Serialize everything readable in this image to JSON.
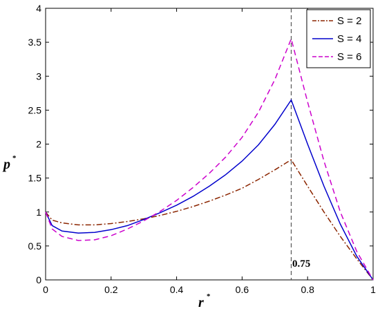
{
  "chart_data": {
    "type": "line",
    "xlabel": "r",
    "xlabel_sup": "*",
    "ylabel": "p",
    "ylabel_sup": "*",
    "xlim": [
      0,
      1
    ],
    "ylim": [
      0,
      4
    ],
    "xticks": [
      0,
      0.2,
      0.4,
      0.6,
      0.8,
      1
    ],
    "xtick_labels": [
      "0",
      "0.2",
      "0.4",
      "0.6",
      "0.8",
      "1"
    ],
    "yticks": [
      0,
      0.5,
      1,
      1.5,
      2,
      2.5,
      3,
      3.5,
      4
    ],
    "ytick_labels": [
      "0",
      "0.5",
      "1",
      "1.5",
      "2",
      "2.5",
      "3",
      "3.5",
      "4"
    ],
    "grid": false,
    "legend_position": "top-right",
    "vline": {
      "x": 0.75,
      "label": "0.75",
      "color": "#555555",
      "style": "dashed"
    },
    "series": [
      {
        "name": "S = 2",
        "color": "#8B2500",
        "style": "dashdot",
        "x": [
          0,
          0.02,
          0.05,
          0.1,
          0.15,
          0.2,
          0.25,
          0.3,
          0.35,
          0.4,
          0.45,
          0.5,
          0.55,
          0.6,
          0.65,
          0.7,
          0.75,
          0.8,
          0.85,
          0.9,
          0.95,
          1
        ],
        "y": [
          1.0,
          0.88,
          0.84,
          0.81,
          0.81,
          0.83,
          0.86,
          0.9,
          0.95,
          1.01,
          1.08,
          1.16,
          1.25,
          1.35,
          1.48,
          1.62,
          1.77,
          1.38,
          1.0,
          0.64,
          0.31,
          0
        ]
      },
      {
        "name": "S = 4",
        "color": "#0000CC",
        "style": "solid",
        "x": [
          0,
          0.02,
          0.05,
          0.1,
          0.15,
          0.2,
          0.25,
          0.3,
          0.35,
          0.4,
          0.45,
          0.5,
          0.55,
          0.6,
          0.65,
          0.7,
          0.75,
          0.8,
          0.85,
          0.9,
          0.95,
          1
        ],
        "y": [
          1.0,
          0.8,
          0.72,
          0.69,
          0.7,
          0.74,
          0.8,
          0.89,
          0.99,
          1.1,
          1.23,
          1.38,
          1.55,
          1.75,
          1.99,
          2.29,
          2.65,
          2.0,
          1.38,
          0.82,
          0.35,
          0
        ]
      },
      {
        "name": "S = 6",
        "color": "#CC00CC",
        "style": "dashed",
        "x": [
          0,
          0.02,
          0.05,
          0.1,
          0.15,
          0.2,
          0.25,
          0.3,
          0.35,
          0.4,
          0.45,
          0.5,
          0.55,
          0.6,
          0.65,
          0.7,
          0.75,
          0.8,
          0.85,
          0.9,
          0.95,
          1
        ],
        "y": [
          1.0,
          0.75,
          0.64,
          0.58,
          0.59,
          0.65,
          0.75,
          0.87,
          1.01,
          1.17,
          1.36,
          1.57,
          1.81,
          2.1,
          2.47,
          2.95,
          3.55,
          2.62,
          1.75,
          1.0,
          0.42,
          0
        ]
      }
    ]
  }
}
